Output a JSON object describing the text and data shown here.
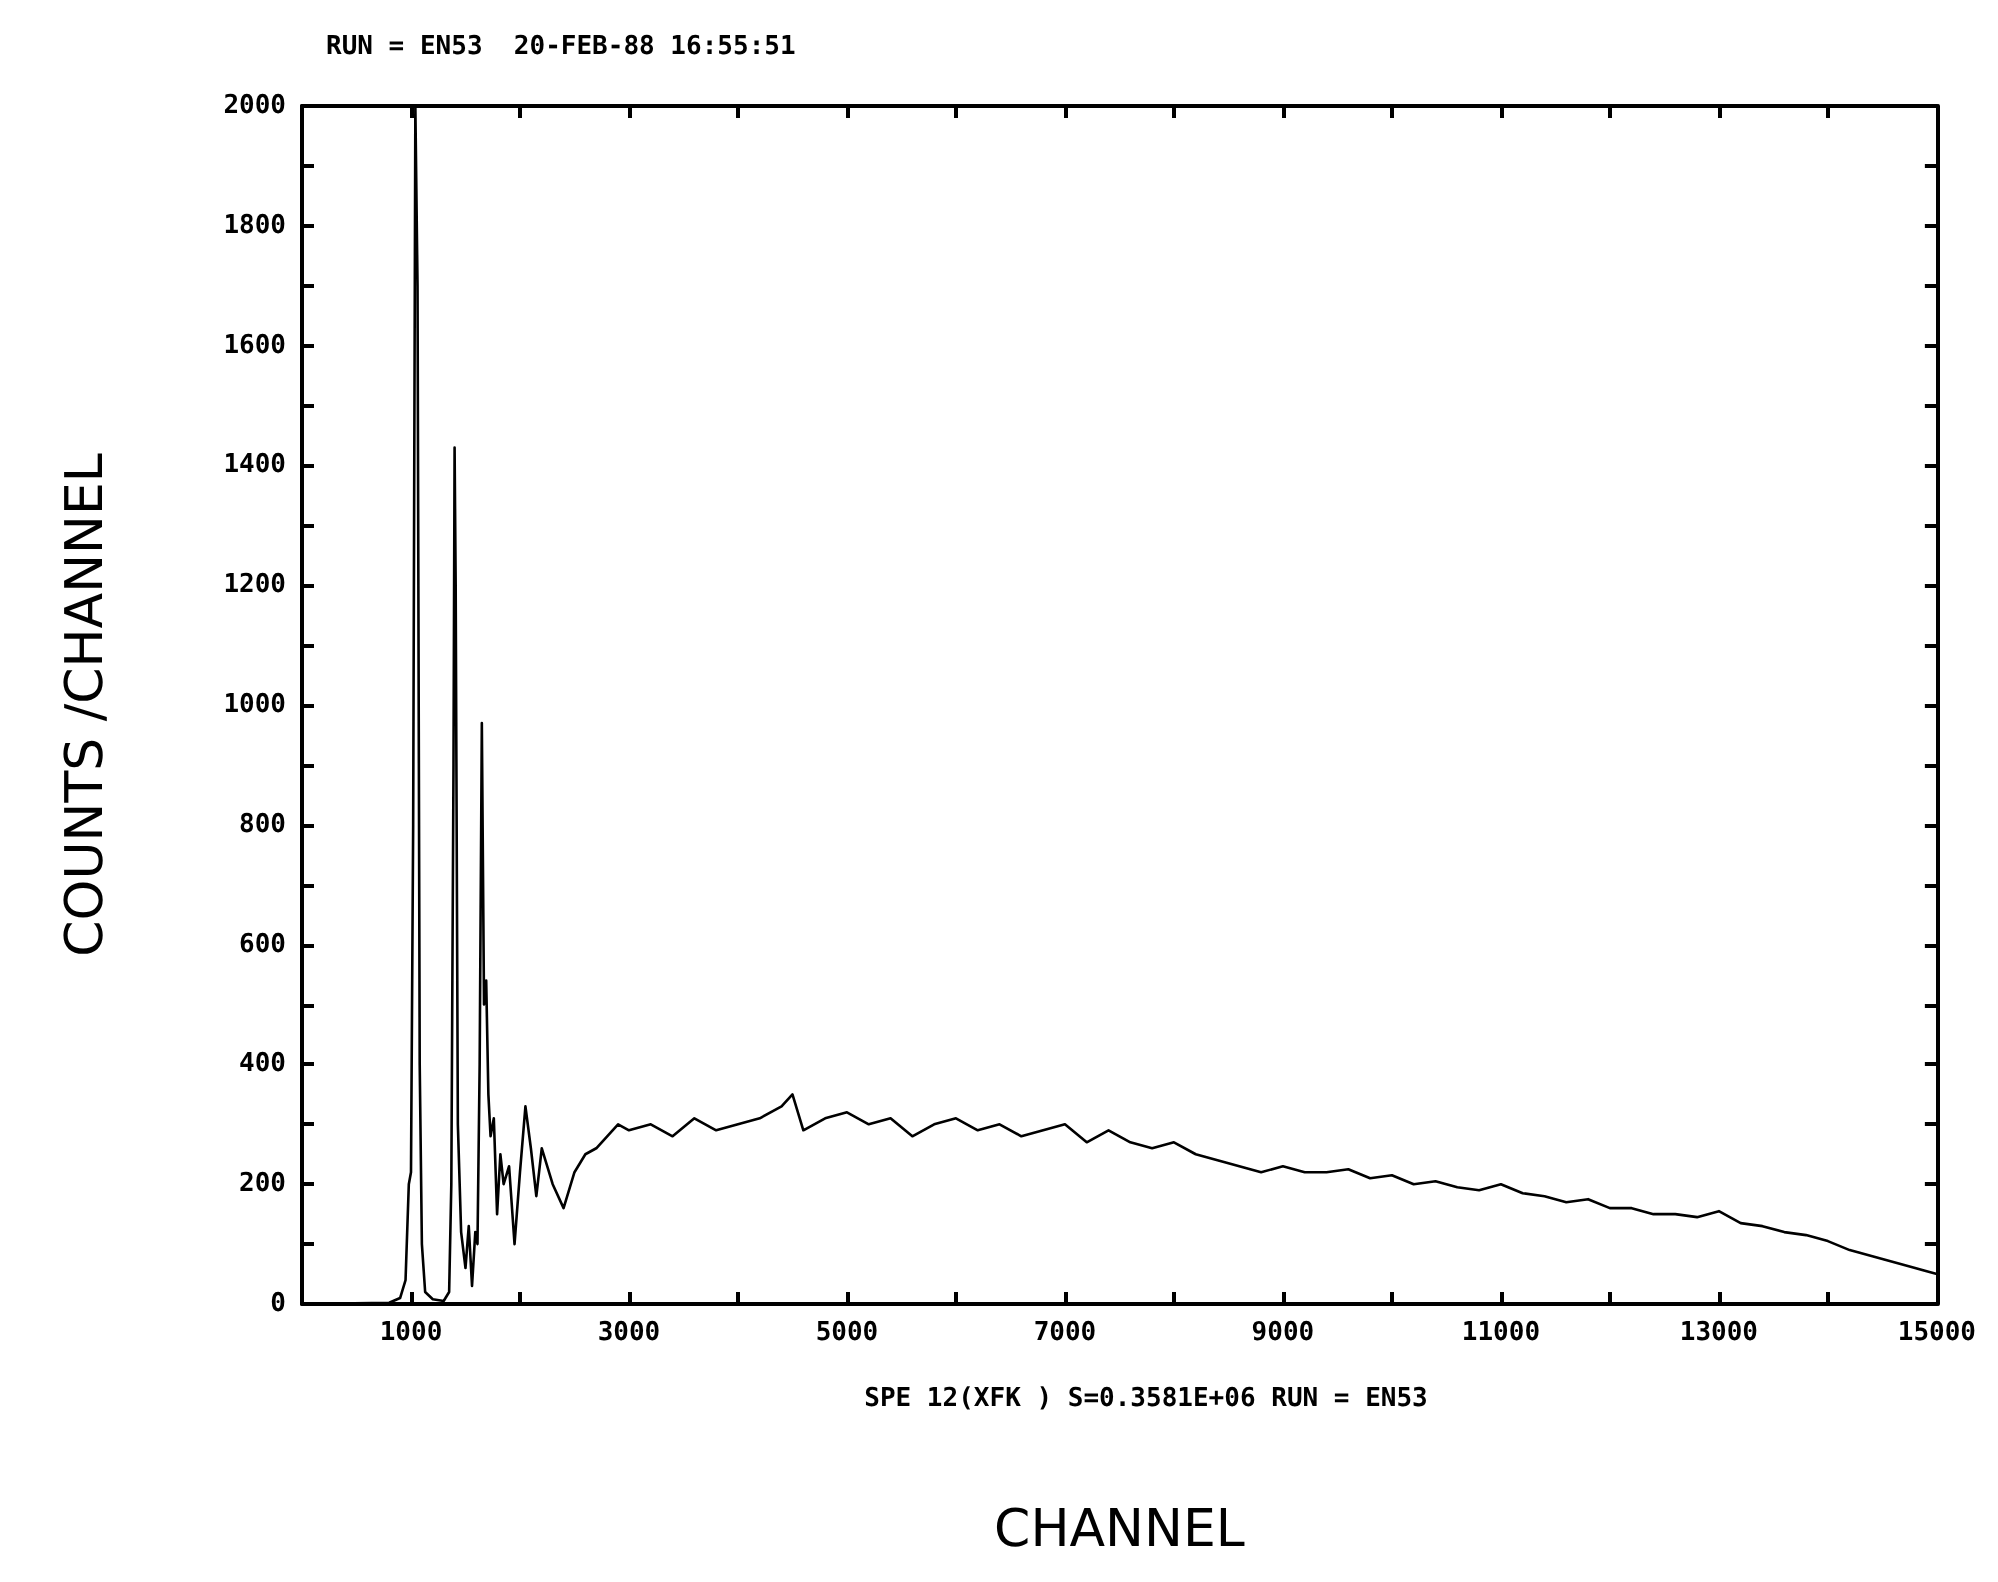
{
  "chart_data": {
    "type": "line",
    "title": "RUN = EN53  20-FEB-88 16:55:51",
    "subtitle": "SPE 12(XFK ) S=0.3581E+06 RUN = EN53",
    "xlabel": "CHANNEL",
    "ylabel": "COUNTS /CHANNEL",
    "x": [
      0,
      800,
      900,
      950,
      980,
      1000,
      1020,
      1040,
      1060,
      1080,
      1100,
      1130,
      1200,
      1300,
      1350,
      1370,
      1390,
      1400,
      1410,
      1430,
      1460,
      1500,
      1530,
      1560,
      1590,
      1610,
      1630,
      1650,
      1670,
      1690,
      1710,
      1730,
      1760,
      1790,
      1820,
      1850,
      1900,
      1950,
      2000,
      2050,
      2100,
      2150,
      2200,
      2300,
      2400,
      2500,
      2600,
      2700,
      2800,
      2900,
      3000,
      3200,
      3400,
      3600,
      3800,
      4000,
      4200,
      4400,
      4500,
      4600,
      4800,
      5000,
      5200,
      5400,
      5600,
      5800,
      6000,
      6200,
      6400,
      6600,
      6800,
      7000,
      7200,
      7400,
      7600,
      7800,
      8000,
      8200,
      8400,
      8600,
      8800,
      9000,
      9200,
      9400,
      9600,
      9800,
      10000,
      10200,
      10400,
      10600,
      10800,
      11000,
      11200,
      11400,
      11600,
      11800,
      12000,
      12200,
      12400,
      12600,
      12800,
      13000,
      13200,
      13400,
      13600,
      13800,
      14000,
      14200,
      14400,
      14600,
      14800,
      15000
    ],
    "series": [
      {
        "color": "#000000",
        "values": [
          0,
          2,
          10,
          40,
          200,
          220,
          800,
          2000,
          1700,
          400,
          100,
          20,
          8,
          5,
          20,
          200,
          900,
          1430,
          1200,
          300,
          120,
          60,
          130,
          30,
          120,
          100,
          400,
          970,
          500,
          540,
          350,
          280,
          310,
          150,
          250,
          200,
          230,
          100,
          220,
          330,
          260,
          180,
          260,
          200,
          160,
          220,
          250,
          260,
          280,
          300,
          290,
          300,
          280,
          310,
          290,
          300,
          310,
          330,
          350,
          290,
          310,
          320,
          300,
          310,
          280,
          300,
          310,
          290,
          300,
          280,
          290,
          300,
          270,
          290,
          270,
          260,
          270,
          250,
          240,
          230,
          220,
          230,
          220,
          220,
          225,
          210,
          215,
          200,
          205,
          195,
          190,
          200,
          185,
          180,
          170,
          175,
          160,
          160,
          150,
          150,
          145,
          155,
          135,
          130,
          120,
          115,
          105,
          90,
          80,
          70,
          60,
          50
        ]
      }
    ],
    "xlim": [
      0,
      15000
    ],
    "xticks": [
      {
        "value": 1000,
        "label": "1000"
      },
      {
        "value": 2000,
        "label": null
      },
      {
        "value": 3000,
        "label": "3000"
      },
      {
        "value": 4000,
        "label": null
      },
      {
        "value": 5000,
        "label": "5000"
      },
      {
        "value": 6000,
        "label": null
      },
      {
        "value": 7000,
        "label": "7000"
      },
      {
        "value": 8000,
        "label": null
      },
      {
        "value": 9000,
        "label": "9000"
      },
      {
        "value": 10000,
        "label": null
      },
      {
        "value": 11000,
        "label": "11000"
      },
      {
        "value": 12000,
        "label": null
      },
      {
        "value": 13000,
        "label": "13000"
      },
      {
        "value": 14000,
        "label": null
      },
      {
        "value": 15000,
        "label": "15000"
      }
    ],
    "ylim": [
      0,
      2000
    ],
    "yticks": [
      0,
      {
        "value": 100,
        "label": null
      },
      200,
      {
        "value": 300,
        "label": null
      },
      400,
      {
        "value": 500,
        "label": null
      },
      600,
      {
        "value": 700,
        "label": null
      },
      800,
      {
        "value": 900,
        "label": null
      },
      1000,
      {
        "value": 1100,
        "label": null
      },
      1200,
      {
        "value": 1300,
        "label": null
      },
      1400,
      {
        "value": 1500,
        "label": null
      },
      1600,
      {
        "value": 1700,
        "label": null
      },
      1800,
      {
        "value": 1900,
        "label": null
      },
      2000
    ],
    "marker": "none",
    "line_style": "solid",
    "grid": false
  }
}
